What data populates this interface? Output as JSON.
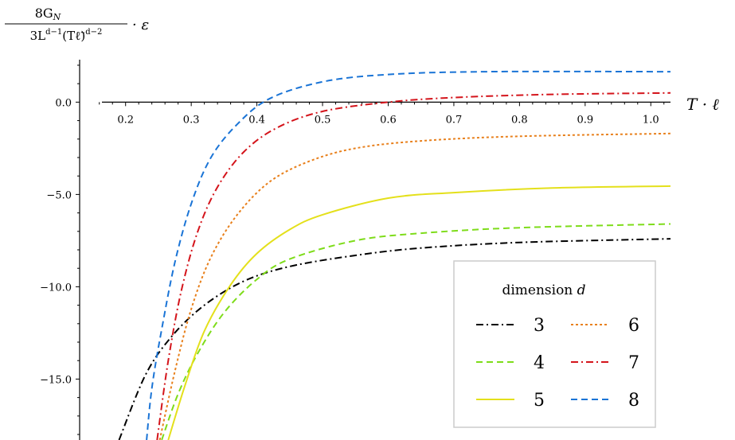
{
  "chart_data": {
    "type": "line",
    "ylabel": {
      "numerator": "8G",
      "numerator_sub": "N",
      "denominator": "3L",
      "denominator_sup": "d−1",
      "denominator_mid": "(T",
      "denominator_ell": "ℓ̃",
      "denominator_close": ")",
      "denominator_sup2": "d−2",
      "suffix": "· ε"
    },
    "xlabel": "T · ℓ",
    "xlim": [
      0.13,
      1.03
    ],
    "ylim": [
      -18.3,
      2.3
    ],
    "x_ticks": [
      "0.2",
      "0.3",
      "0.4",
      "0.5",
      "0.6",
      "0.7",
      "0.8",
      "0.9",
      "1.0"
    ],
    "y_ticks": [
      "0.0",
      "−5.0",
      "−10.0",
      "−15.0"
    ],
    "legend": {
      "title": "dimension",
      "title_var": "d",
      "placement": "lower-right"
    },
    "series": [
      {
        "name": "3",
        "color": "#000000",
        "dash": "dashdot",
        "x": [
          0.19,
          0.23,
          0.27,
          0.32,
          0.38,
          0.45,
          0.55,
          0.65,
          0.8,
          1.03
        ],
        "y": [
          -18.3,
          -14.8,
          -12.7,
          -11.0,
          -9.7,
          -8.9,
          -8.3,
          -7.9,
          -7.6,
          -7.4
        ]
      },
      {
        "name": "4",
        "color": "#7edc1a",
        "dash": "dashed",
        "x": [
          0.255,
          0.28,
          0.31,
          0.35,
          0.4,
          0.45,
          0.55,
          0.65,
          0.8,
          1.03
        ],
        "y": [
          -18.3,
          -15.8,
          -13.6,
          -11.4,
          -9.6,
          -8.5,
          -7.5,
          -7.1,
          -6.8,
          -6.6
        ]
      },
      {
        "name": "5",
        "color": "#e4e01b",
        "dash": "solid",
        "x": [
          0.265,
          0.29,
          0.32,
          0.36,
          0.4,
          0.45,
          0.5,
          0.6,
          0.7,
          0.85,
          1.03
        ],
        "y": [
          -18.3,
          -15.4,
          -12.4,
          -9.9,
          -8.2,
          -6.9,
          -6.1,
          -5.2,
          -4.9,
          -4.65,
          -4.55
        ]
      },
      {
        "name": "6",
        "color": "#e8801c",
        "dash": "dotted",
        "x": [
          0.252,
          0.275,
          0.3,
          0.33,
          0.37,
          0.42,
          0.48,
          0.55,
          0.65,
          0.8,
          1.03
        ],
        "y": [
          -18.3,
          -14.6,
          -11.2,
          -8.4,
          -6.1,
          -4.3,
          -3.2,
          -2.5,
          -2.1,
          -1.85,
          -1.7
        ]
      },
      {
        "name": "7",
        "color": "#d4141b",
        "dash": "dashdot",
        "x": [
          0.248,
          0.265,
          0.285,
          0.31,
          0.34,
          0.38,
          0.43,
          0.5,
          0.6,
          0.7,
          0.85,
          1.03
        ],
        "y": [
          -18.3,
          -14.0,
          -10.2,
          -7.0,
          -4.6,
          -2.7,
          -1.4,
          -0.5,
          0.0,
          0.25,
          0.42,
          0.5
        ]
      },
      {
        "name": "8",
        "color": "#1a74d6",
        "dash": "dashed",
        "x": [
          0.232,
          0.24,
          0.255,
          0.275,
          0.3,
          0.33,
          0.37,
          0.42,
          0.5,
          0.6,
          0.75,
          1.03
        ],
        "y": [
          -18.3,
          -15.5,
          -12.3,
          -8.7,
          -5.5,
          -3.0,
          -1.2,
          0.2,
          1.1,
          1.5,
          1.65,
          1.65
        ]
      }
    ]
  }
}
